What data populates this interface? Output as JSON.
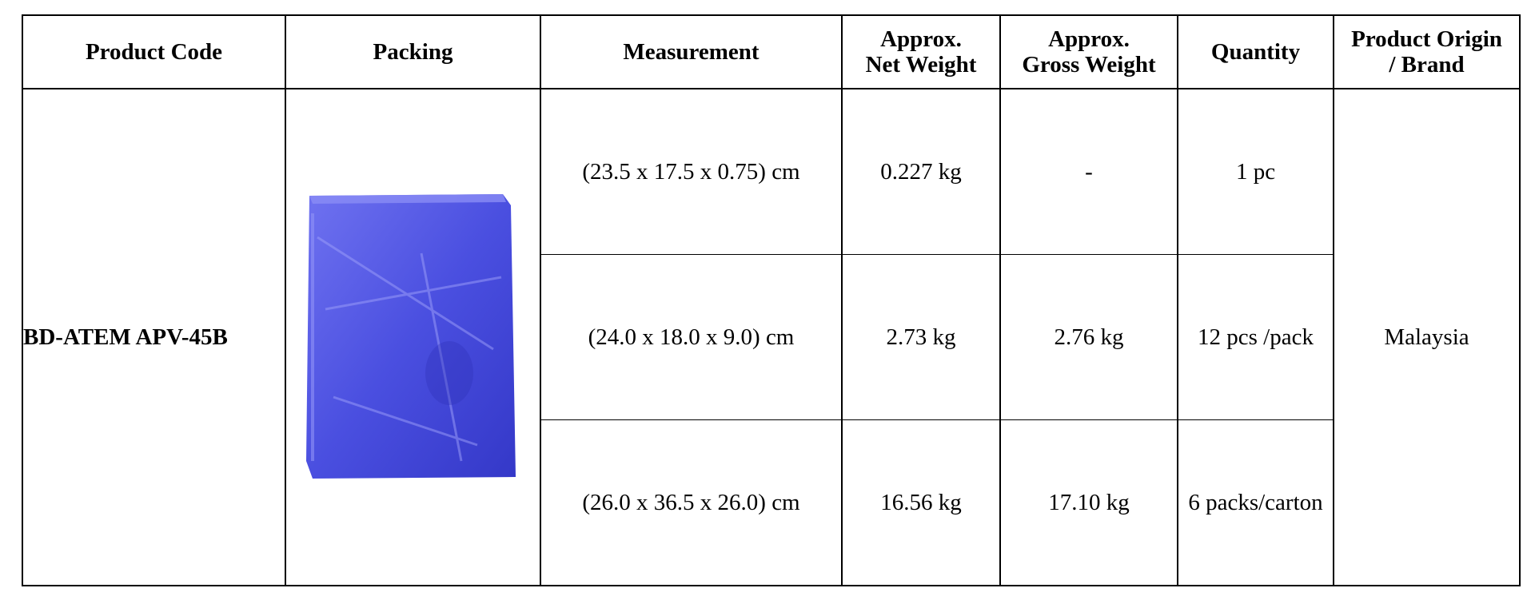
{
  "table": {
    "headers": [
      "Product Code",
      "Packing",
      "Measurement",
      "Approx.\nNet Weight",
      "Approx.\nGross Weight",
      "Quantity",
      "Product Origin\n/ Brand"
    ],
    "product_code": "BD-ATEM APV-45B",
    "origin": "Malaysia",
    "rows": [
      [
        "(23.5 x 17.5 x 0.75) cm",
        "0.227 kg",
        "-",
        "1 pc"
      ],
      [
        "(24.0 x 18.0 x 9.0) cm",
        "2.73 kg",
        "2.76 kg",
        "12 pcs /pack"
      ],
      [
        "(26.0 x 36.5 x 26.0) cm",
        "16.56 kg",
        "17.10 kg",
        "6 packs/carton"
      ]
    ]
  }
}
